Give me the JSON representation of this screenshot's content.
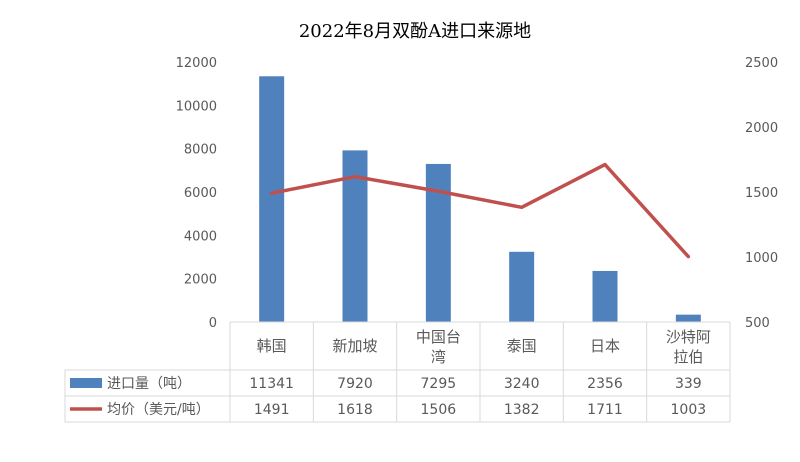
{
  "chart_data": {
    "type": "bar+line",
    "title": "2022年8月双酚A进口来源地",
    "categories": [
      "韩国",
      "新加坡",
      "中国台湾",
      "泰国",
      "日本",
      "沙特阿拉伯"
    ],
    "category_lines": [
      [
        "韩国"
      ],
      [
        "新加坡"
      ],
      [
        "中国台",
        "湾"
      ],
      [
        "泰国"
      ],
      [
        "日本"
      ],
      [
        "沙特阿",
        "拉伯"
      ]
    ],
    "series": [
      {
        "name": "进口量（吨）",
        "type": "bar",
        "axis": "left",
        "color": "#4f81bd",
        "values": [
          11341,
          7920,
          7295,
          3240,
          2356,
          339
        ]
      },
      {
        "name": "均价（美元/吨）",
        "type": "line",
        "axis": "right",
        "color": "#c0504d",
        "values": [
          1491,
          1618,
          1506,
          1382,
          1711,
          1003
        ]
      }
    ],
    "y_left": {
      "min": 0,
      "max": 12000,
      "ticks": [
        0,
        2000,
        4000,
        6000,
        8000,
        10000,
        12000
      ]
    },
    "y_right": {
      "min": 500,
      "max": 2500,
      "ticks": [
        500,
        1000,
        1500,
        2000,
        2500
      ]
    },
    "data_table": true,
    "legend": "in-table"
  }
}
